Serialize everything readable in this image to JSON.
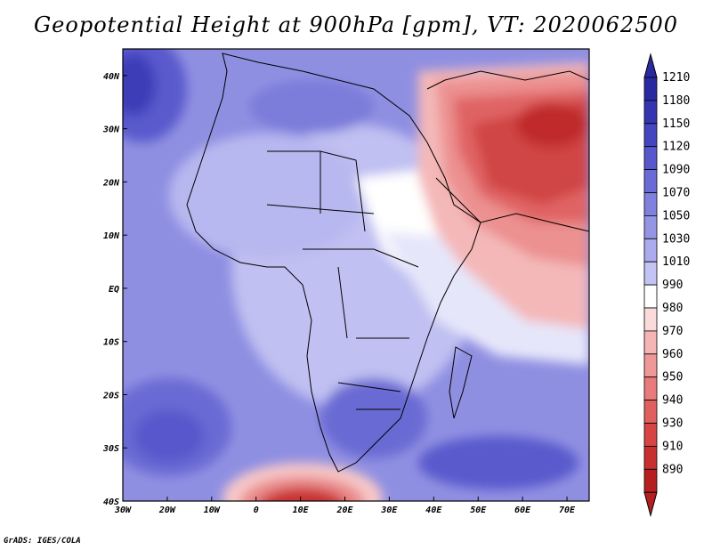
{
  "title": "Geopotential Height at 900hPa [gpm], VT: 2020062500",
  "credit": "GrADS: IGES/COLA",
  "map": {
    "lon_range": [
      -30,
      75
    ],
    "lat_range": [
      -40,
      45
    ],
    "lon_ticks": [
      {
        "v": -30,
        "label": "30W"
      },
      {
        "v": -20,
        "label": "20W"
      },
      {
        "v": -10,
        "label": "10W"
      },
      {
        "v": 0,
        "label": "0"
      },
      {
        "v": 10,
        "label": "10E"
      },
      {
        "v": 20,
        "label": "20E"
      },
      {
        "v": 30,
        "label": "30E"
      },
      {
        "v": 40,
        "label": "40E"
      },
      {
        "v": 50,
        "label": "50E"
      },
      {
        "v": 60,
        "label": "60E"
      },
      {
        "v": 70,
        "label": "70E"
      }
    ],
    "lat_ticks": [
      {
        "v": 40,
        "label": "40N"
      },
      {
        "v": 30,
        "label": "30N"
      },
      {
        "v": 20,
        "label": "20N"
      },
      {
        "v": 10,
        "label": "10N"
      },
      {
        "v": 0,
        "label": "EQ"
      },
      {
        "v": -10,
        "label": "10S"
      },
      {
        "v": -20,
        "label": "20S"
      },
      {
        "v": -30,
        "label": "30S"
      },
      {
        "v": -40,
        "label": "40S"
      }
    ]
  },
  "colorbar": {
    "levels": [
      {
        "label": "1210",
        "color": "#2a2aa0"
      },
      {
        "label": "1180",
        "color": "#3535b0"
      },
      {
        "label": "1150",
        "color": "#4545c0"
      },
      {
        "label": "1120",
        "color": "#5858cc"
      },
      {
        "label": "1090",
        "color": "#6b6bd6"
      },
      {
        "label": "1070",
        "color": "#8080de"
      },
      {
        "label": "1050",
        "color": "#9595e6"
      },
      {
        "label": "1030",
        "color": "#ababee"
      },
      {
        "label": "1010",
        "color": "#c4c4f4"
      },
      {
        "label": "990",
        "color": "#ffffff"
      },
      {
        "label": "980",
        "color": "#fbdada"
      },
      {
        "label": "970",
        "color": "#f5b5b5"
      },
      {
        "label": "960",
        "color": "#ef9898"
      },
      {
        "label": "950",
        "color": "#e87b7b"
      },
      {
        "label": "940",
        "color": "#e06060"
      },
      {
        "label": "930",
        "color": "#d64444"
      },
      {
        "label": "910",
        "color": "#c83030"
      },
      {
        "label": "890",
        "color": "#b51f1f"
      }
    ],
    "low_end_color": "#b51f1f",
    "high_end_color": "#2a2aa0"
  },
  "colors": {
    "field_background": "#8a8ae0",
    "high_centre": "#5050c8",
    "land_outline": "#000000"
  }
}
